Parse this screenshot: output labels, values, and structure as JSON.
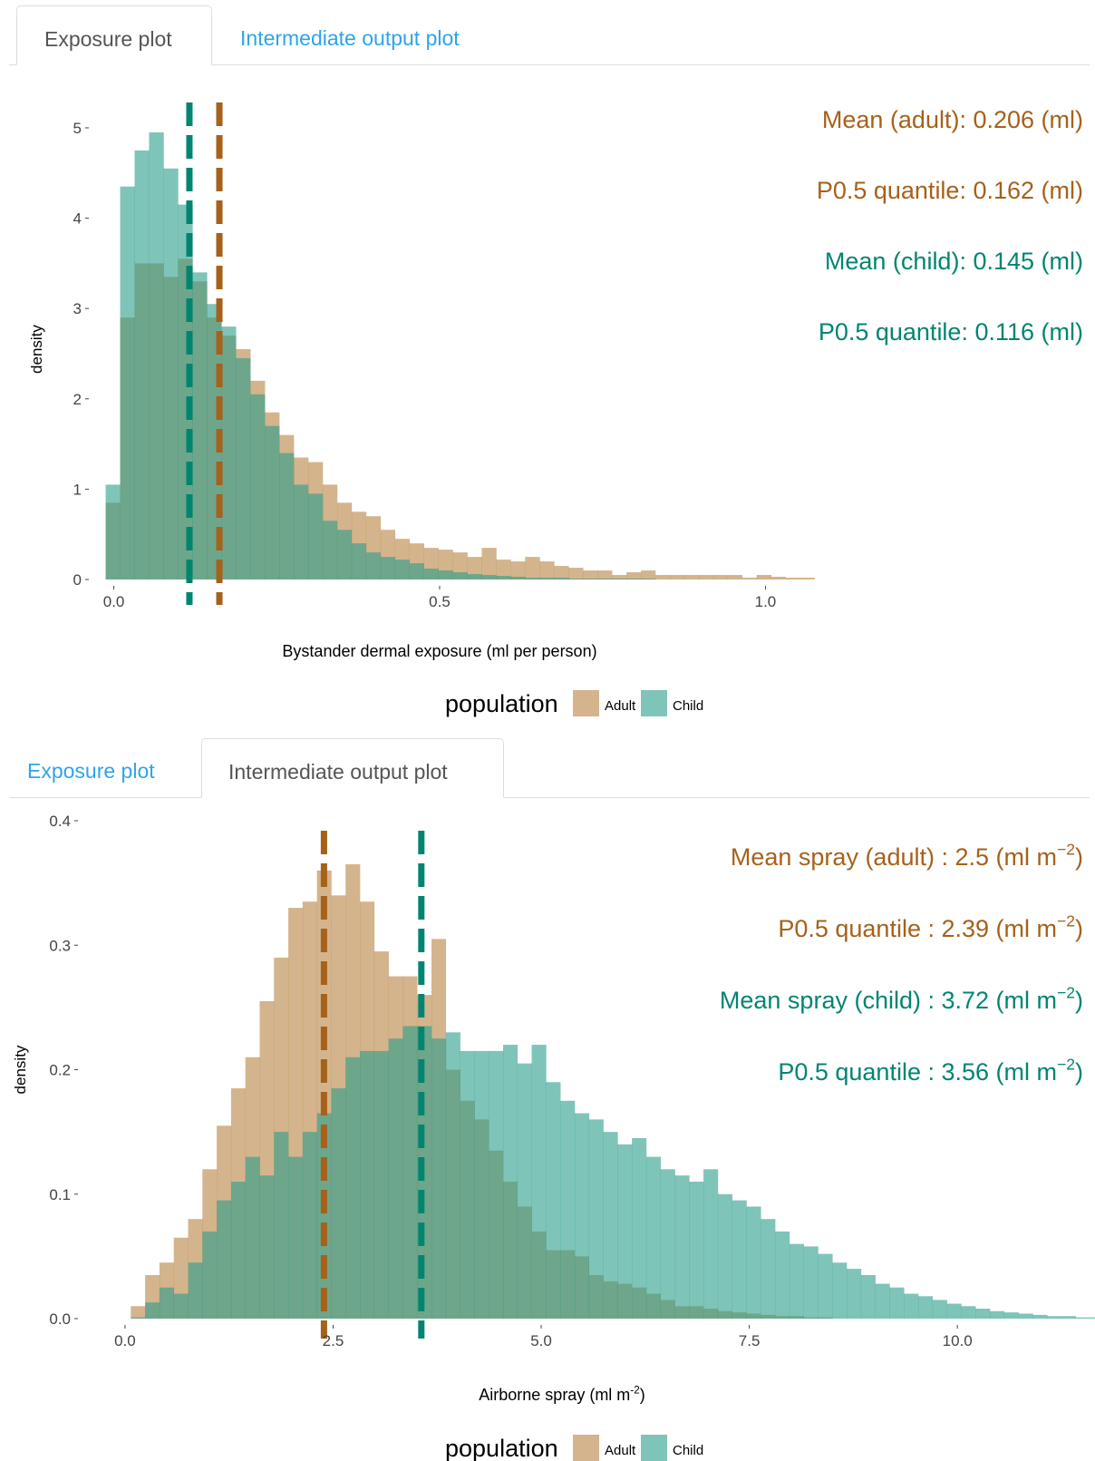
{
  "tabs_top": [
    {
      "label": "Exposure plot",
      "active": true
    },
    {
      "label": "Intermediate output plot",
      "active": false
    }
  ],
  "tabs_bottom": [
    {
      "label": "Exposure plot",
      "active": false
    },
    {
      "label": "Intermediate output plot",
      "active": true
    }
  ],
  "colors": {
    "adult": "#b8823f",
    "child": "#2a9d8a",
    "adult_line": "#a6611a",
    "child_line": "#018571",
    "tab_link": "#2fa4e7"
  },
  "chart_data": [
    {
      "type": "histogram",
      "xlabel": "Bystander dermal exposure (ml per person)",
      "ylabel": "density",
      "xlim": [
        -0.03,
        1.03
      ],
      "ylim": [
        0,
        5.1
      ],
      "xticks": [
        {
          "v": 0,
          "label": "0.0"
        },
        {
          "v": 0.5,
          "label": "0.5"
        },
        {
          "v": 1.0,
          "label": "1.0"
        }
      ],
      "yticks": [
        {
          "v": 0,
          "label": "0"
        },
        {
          "v": 1,
          "label": "1"
        },
        {
          "v": 2,
          "label": "2"
        },
        {
          "v": 3,
          "label": "3"
        },
        {
          "v": 4,
          "label": "4"
        },
        {
          "v": 5,
          "label": "5"
        }
      ],
      "bin_start": -0.0125,
      "bin_width": 0.0222,
      "series": [
        {
          "name": "Adult",
          "values": [
            0.85,
            2.9,
            3.5,
            3.5,
            3.35,
            3.55,
            3.3,
            2.9,
            2.7,
            2.55,
            2.2,
            1.85,
            1.6,
            1.35,
            1.3,
            1.05,
            0.85,
            0.75,
            0.7,
            0.55,
            0.45,
            0.4,
            0.35,
            0.33,
            0.3,
            0.25,
            0.35,
            0.22,
            0.2,
            0.25,
            0.2,
            0.15,
            0.13,
            0.1,
            0.1,
            0.05,
            0.08,
            0.1,
            0.05,
            0.05,
            0.05,
            0.05,
            0.05,
            0.05,
            0.02,
            0.05,
            0.03,
            0.02,
            0.02
          ]
        },
        {
          "name": "Child",
          "values": [
            1.05,
            4.35,
            4.75,
            4.95,
            4.55,
            4.15,
            3.4,
            3.05,
            2.8,
            2.45,
            2.05,
            1.7,
            1.4,
            1.05,
            0.95,
            0.65,
            0.55,
            0.4,
            0.3,
            0.25,
            0.22,
            0.18,
            0.12,
            0.1,
            0.08,
            0.06,
            0.05,
            0.04,
            0.03,
            0.02,
            0.02,
            0.02,
            0.01,
            0.01,
            0.01,
            0.01,
            0.01,
            0.01
          ]
        }
      ],
      "vlines": [
        {
          "name": "Child",
          "x": 0.116
        },
        {
          "name": "Adult",
          "x": 0.162
        }
      ],
      "annotations": [
        {
          "label": "Mean (adult): 0.206 (ml)",
          "series": "Adult"
        },
        {
          "label": "P0.5 quantile: 0.162 (ml)",
          "series": "Adult"
        },
        {
          "label": "Mean (child): 0.145 (ml)",
          "series": "Child"
        },
        {
          "label": "P0.5 quantile: 0.116 (ml)",
          "series": "Child"
        }
      ],
      "legend_title": "population",
      "legend": [
        "Adult",
        "Child"
      ]
    },
    {
      "type": "histogram",
      "xlabel_main": "Airborne spray (ml m",
      "xlabel_sup": "-2",
      "xlabel_end": ")",
      "ylabel": "density",
      "xlim": [
        -0.5,
        11.0
      ],
      "ylim": [
        0,
        0.4
      ],
      "xticks": [
        {
          "v": 0,
          "label": "0.0"
        },
        {
          "v": 2.5,
          "label": "2.5"
        },
        {
          "v": 5.0,
          "label": "5.0"
        },
        {
          "v": 7.5,
          "label": "7.5"
        },
        {
          "v": 10.0,
          "label": "10.0"
        }
      ],
      "yticks": [
        {
          "v": 0,
          "label": "0.0"
        },
        {
          "v": 0.1,
          "label": "0.1"
        },
        {
          "v": 0.2,
          "label": "0.2"
        },
        {
          "v": 0.3,
          "label": "0.3"
        },
        {
          "v": 0.4,
          "label": "0.4"
        }
      ],
      "bin_start": 0.07,
      "bin_width": 0.172,
      "series": [
        {
          "name": "Adult",
          "values": [
            0.01,
            0.035,
            0.045,
            0.065,
            0.08,
            0.12,
            0.155,
            0.185,
            0.21,
            0.255,
            0.29,
            0.33,
            0.335,
            0.36,
            0.34,
            0.365,
            0.335,
            0.295,
            0.275,
            0.275,
            0.26,
            0.305,
            0.2,
            0.175,
            0.16,
            0.135,
            0.11,
            0.09,
            0.07,
            0.055,
            0.055,
            0.05,
            0.035,
            0.03,
            0.028,
            0.025,
            0.02,
            0.015,
            0.01,
            0.01,
            0.008,
            0.006,
            0.005,
            0.004,
            0.003,
            0.002,
            0.002,
            0.001,
            0.001
          ]
        },
        {
          "name": "Child",
          "values": [
            0.001,
            0.013,
            0.025,
            0.02,
            0.045,
            0.07,
            0.095,
            0.11,
            0.13,
            0.115,
            0.15,
            0.13,
            0.15,
            0.165,
            0.185,
            0.21,
            0.215,
            0.215,
            0.225,
            0.235,
            0.235,
            0.225,
            0.23,
            0.215,
            0.215,
            0.215,
            0.22,
            0.205,
            0.22,
            0.19,
            0.175,
            0.165,
            0.16,
            0.15,
            0.14,
            0.145,
            0.13,
            0.12,
            0.115,
            0.11,
            0.12,
            0.1,
            0.095,
            0.09,
            0.08,
            0.07,
            0.06,
            0.058,
            0.052,
            0.045,
            0.04,
            0.035,
            0.028,
            0.025,
            0.02,
            0.018,
            0.015,
            0.012,
            0.01,
            0.008,
            0.006,
            0.005,
            0.004,
            0.003,
            0.002,
            0.002,
            0.001,
            0.001,
            0.001,
            0.001
          ]
        }
      ],
      "vlines": [
        {
          "name": "Adult",
          "x": 2.39
        },
        {
          "name": "Child",
          "x": 3.56
        }
      ],
      "annotations": [
        {
          "main": "Mean spray (adult) :  2.5 (ml m",
          "sup": "−2",
          "end": ")",
          "series": "Adult"
        },
        {
          "main": "P0.5 quantile :  2.39 (ml m",
          "sup": "−2",
          "end": ")",
          "series": "Adult"
        },
        {
          "main": "Mean spray (child) :  3.72 (ml m",
          "sup": "−2",
          "end": ")",
          "series": "Child"
        },
        {
          "main": "P0.5 quantile :  3.56 (ml m",
          "sup": "−2",
          "end": ")",
          "series": "Child"
        }
      ],
      "legend_title": "population",
      "legend": [
        "Adult",
        "Child"
      ]
    }
  ]
}
